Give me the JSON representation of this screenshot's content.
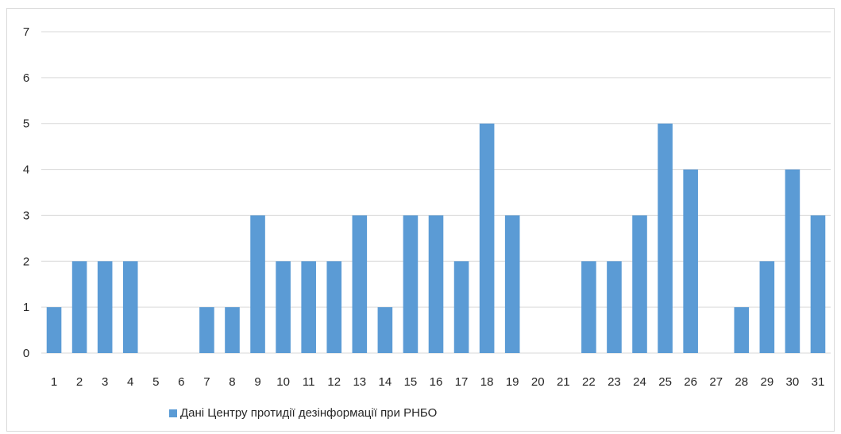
{
  "chart_data": {
    "type": "bar",
    "categories": [
      "1",
      "2",
      "3",
      "4",
      "5",
      "6",
      "7",
      "8",
      "9",
      "10",
      "11",
      "12",
      "13",
      "14",
      "15",
      "16",
      "17",
      "18",
      "19",
      "20",
      "21",
      "22",
      "23",
      "24",
      "25",
      "26",
      "27",
      "28",
      "29",
      "30",
      "31"
    ],
    "series": [
      {
        "name": "Дані Центру протидії дезінформації при РНБО",
        "values": [
          1,
          2,
          2,
          2,
          0,
          0,
          1,
          1,
          3,
          2,
          2,
          2,
          3,
          1,
          3,
          3,
          2,
          5,
          3,
          0,
          0,
          2,
          2,
          3,
          5,
          4,
          0,
          1,
          2,
          4,
          3
        ],
        "color": "#5b9bd5"
      }
    ],
    "title": "",
    "xlabel": "",
    "ylabel": "",
    "ylim": [
      0,
      7
    ],
    "yticks": [
      "0",
      "1",
      "2",
      "3",
      "4",
      "5",
      "6",
      "7"
    ],
    "grid": true,
    "legend_position": "bottom"
  },
  "colors": {
    "bar": "#5b9bd5",
    "grid": "#d9d9d9",
    "text": "#262626"
  }
}
